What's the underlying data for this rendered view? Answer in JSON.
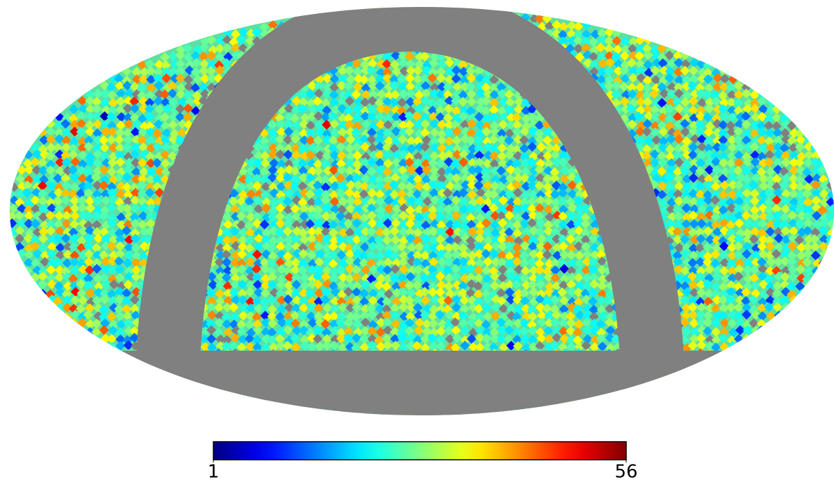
{
  "chart_data": {
    "type": "healpix-map",
    "colormap": "jet",
    "colorbar": {
      "lim": [
        1,
        56
      ],
      "ticks": [
        1,
        56
      ]
    }
  }
}
